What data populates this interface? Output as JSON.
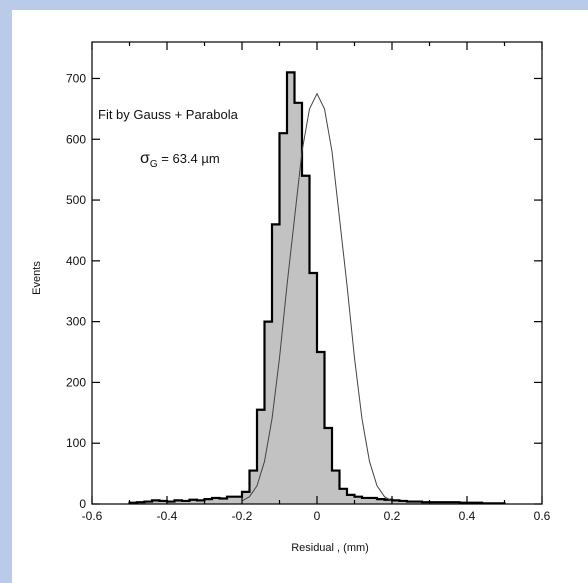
{
  "chart_data": {
    "type": "histogram",
    "xlabel": "Residual  ,  (mm)",
    "ylabel": "Events",
    "xlim": [
      -0.6,
      0.6
    ],
    "ylim": [
      0,
      760
    ],
    "x_ticks": [
      "-0.6",
      "-0.4",
      "-0.2",
      "0",
      "0.2",
      "0.4",
      "0.6"
    ],
    "y_ticks": [
      "0",
      "100",
      "200",
      "300",
      "400",
      "500",
      "600",
      "700"
    ],
    "annotations": {
      "fit_text": "Fit by Gauss + Parabola",
      "sigma_symbol": "σ",
      "sigma_sub": "G",
      "sigma_value": " = 63.4 µm"
    },
    "bin_width": 0.02,
    "bin_edges_start": -0.5,
    "histogram_counts": [
      2,
      3,
      4,
      6,
      5,
      4,
      6,
      5,
      7,
      6,
      8,
      10,
      9,
      12,
      12,
      20,
      55,
      155,
      300,
      460,
      610,
      710,
      660,
      540,
      380,
      250,
      125,
      55,
      25,
      15,
      12,
      10,
      10,
      8,
      7,
      6,
      5,
      4,
      4,
      3,
      3,
      3,
      3,
      3,
      2,
      2,
      2,
      1,
      1,
      1
    ],
    "fit_curve": {
      "x": [
        -0.2,
        -0.18,
        -0.16,
        -0.14,
        -0.12,
        -0.1,
        -0.08,
        -0.06,
        -0.04,
        -0.02,
        0.0,
        0.02,
        0.04,
        0.06,
        0.08,
        0.1,
        0.12,
        0.14,
        0.16,
        0.18,
        0.2
      ],
      "y": [
        5,
        12,
        30,
        70,
        140,
        240,
        360,
        470,
        580,
        650,
        675,
        650,
        580,
        470,
        360,
        240,
        140,
        70,
        30,
        12,
        5
      ]
    },
    "colors": {
      "fill": "#c2c2c2",
      "stroke": "#000000",
      "background": "#b9cbe8"
    }
  }
}
